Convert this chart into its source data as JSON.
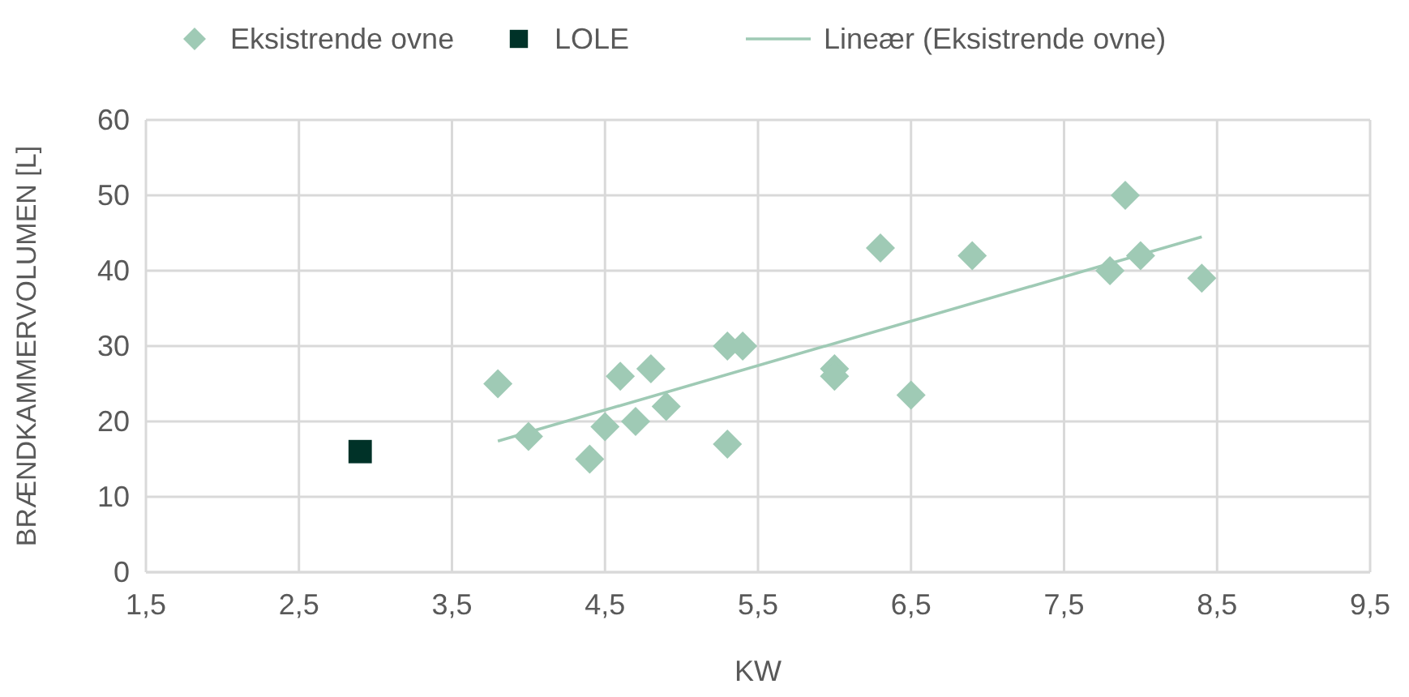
{
  "chart_data": {
    "type": "scatter",
    "xlabel": "KW",
    "ylabel": "BRÆNDKAMMERVOLUMEN [L]",
    "xlim": [
      1.5,
      9.5
    ],
    "xticks": [
      {
        "value": 1.5,
        "label": "1,5"
      },
      {
        "value": 2.5,
        "label": "2,5"
      },
      {
        "value": 3.5,
        "label": "3,5"
      },
      {
        "value": 4.5,
        "label": "4,5"
      },
      {
        "value": 5.5,
        "label": "5,5"
      },
      {
        "value": 6.5,
        "label": "6,5"
      },
      {
        "value": 7.5,
        "label": "7,5"
      },
      {
        "value": 8.5,
        "label": "8,5"
      },
      {
        "value": 9.5,
        "label": "9,5"
      }
    ],
    "ylim": [
      0,
      60
    ],
    "yticks": [
      0,
      10,
      20,
      30,
      40,
      50,
      60
    ],
    "grid": true,
    "legend": "top",
    "series": [
      {
        "name": "Eksistrende ovne",
        "marker": "diamond",
        "color": "#9fcab5",
        "x": [
          3.8,
          4.0,
          4.4,
          4.5,
          4.6,
          4.7,
          4.8,
          4.9,
          5.3,
          5.4,
          5.3,
          6.0,
          6.0,
          6.3,
          6.5,
          6.9,
          7.8,
          7.9,
          8.0,
          8.4
        ],
        "values": [
          25,
          18,
          15,
          19.3,
          26,
          20,
          27,
          22,
          30,
          30,
          17,
          27,
          26,
          43,
          23.5,
          42,
          40,
          50,
          42,
          39
        ]
      },
      {
        "name": "LOLE",
        "marker": "square",
        "color": "#003228",
        "x": [
          2.9
        ],
        "values": [
          16
        ]
      },
      {
        "name": "Lineær (Eksistrende ovne)",
        "type": "line",
        "line_style": "solid",
        "color": "#9fcab5",
        "x": [
          3.8,
          8.4
        ],
        "values": [
          17.4,
          44.5
        ]
      }
    ]
  }
}
